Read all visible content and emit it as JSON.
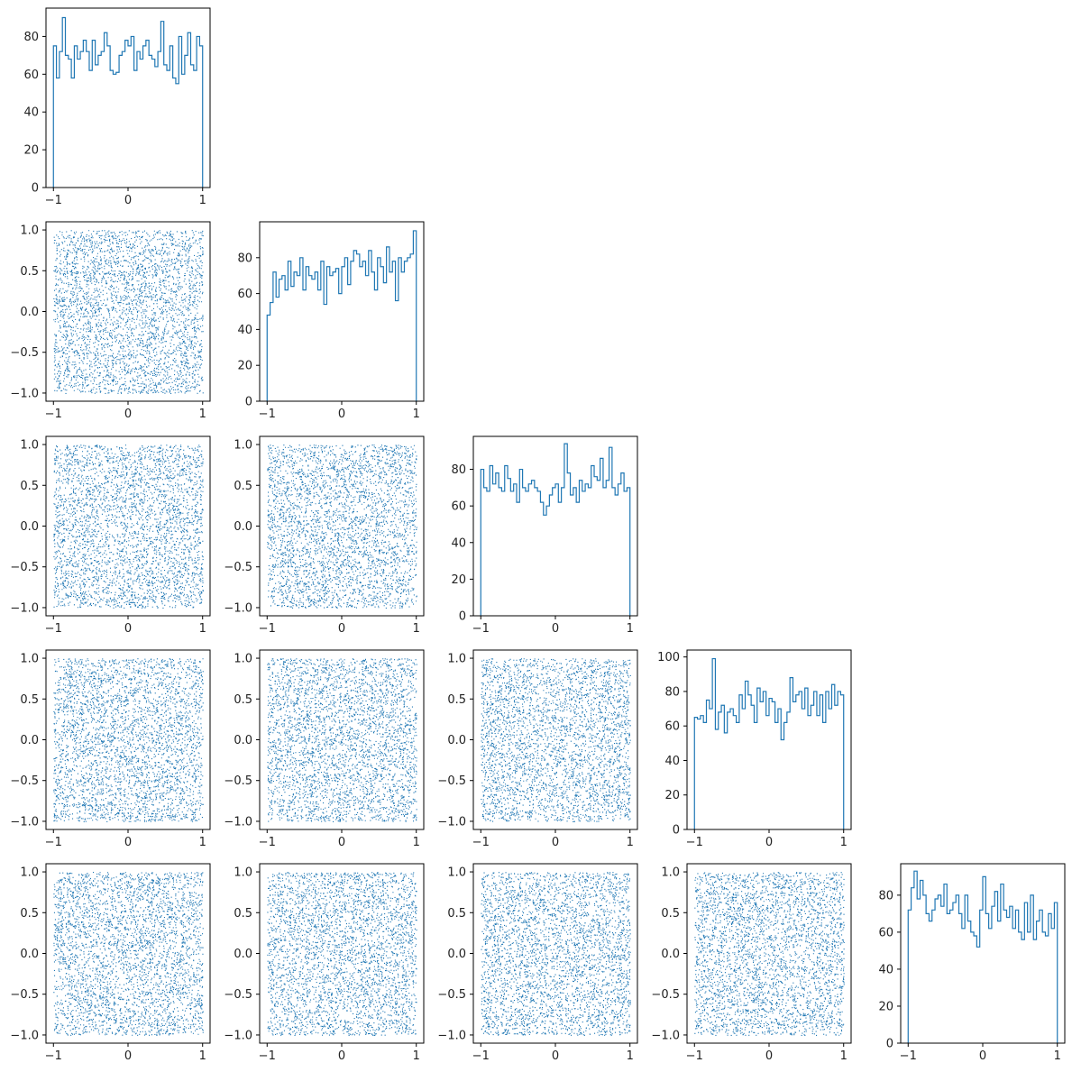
{
  "figure": {
    "type": "corner_plot",
    "n_dims": 5,
    "bins": 50,
    "n_samples": 3500,
    "range": [
      -1,
      1
    ],
    "colors": {
      "hist": "#1f77b4",
      "scatter": "#1f77b4"
    }
  },
  "chart_data": {
    "type": "corner",
    "diagonal": [
      {
        "type": "histogram",
        "dim": 0,
        "ylim": [
          0,
          95
        ],
        "yticks": [
          0,
          20,
          40,
          60,
          80
        ],
        "xticks": [
          -1,
          0,
          1
        ],
        "counts": [
          75,
          58,
          72,
          90,
          70,
          68,
          58,
          75,
          68,
          72,
          78,
          72,
          62,
          78,
          65,
          70,
          72,
          82,
          75,
          62,
          60,
          61,
          70,
          72,
          78,
          75,
          80,
          62,
          72,
          68,
          75,
          78,
          70,
          68,
          64,
          72,
          88,
          65,
          62,
          75,
          58,
          55,
          80,
          60,
          70,
          82,
          65,
          62,
          80,
          75
        ]
      },
      {
        "type": "histogram",
        "dim": 1,
        "ylim": [
          0,
          100
        ],
        "yticks": [
          0,
          20,
          40,
          60,
          80
        ],
        "xticks": [
          -1,
          0,
          1
        ],
        "counts": [
          48,
          55,
          72,
          58,
          68,
          70,
          62,
          78,
          64,
          72,
          70,
          80,
          62,
          75,
          70,
          68,
          72,
          62,
          78,
          54,
          75,
          70,
          72,
          74,
          60,
          75,
          80,
          65,
          78,
          84,
          82,
          75,
          78,
          70,
          84,
          72,
          62,
          80,
          75,
          66,
          86,
          72,
          78,
          56,
          80,
          72,
          78,
          80,
          82,
          95
        ]
      },
      {
        "type": "histogram",
        "dim": 2,
        "ylim": [
          0,
          98
        ],
        "yticks": [
          0,
          20,
          40,
          60,
          80
        ],
        "xticks": [
          -1,
          0,
          1
        ],
        "counts": [
          80,
          70,
          68,
          82,
          72,
          78,
          70,
          68,
          82,
          75,
          68,
          72,
          62,
          80,
          70,
          68,
          72,
          74,
          70,
          68,
          62,
          55,
          60,
          66,
          70,
          72,
          62,
          70,
          94,
          78,
          66,
          70,
          62,
          74,
          68,
          72,
          70,
          82,
          76,
          74,
          86,
          70,
          74,
          92,
          70,
          66,
          72,
          78,
          68,
          70
        ]
      },
      {
        "type": "histogram",
        "dim": 3,
        "ylim": [
          0,
          104
        ],
        "yticks": [
          0,
          20,
          40,
          60,
          80,
          100
        ],
        "xticks": [
          -1,
          0,
          1
        ],
        "counts": [
          65,
          64,
          66,
          62,
          75,
          70,
          99,
          58,
          68,
          72,
          56,
          68,
          70,
          66,
          62,
          78,
          70,
          86,
          78,
          72,
          62,
          82,
          74,
          80,
          66,
          76,
          74,
          62,
          70,
          52,
          62,
          68,
          88,
          74,
          78,
          80,
          70,
          82,
          66,
          72,
          80,
          66,
          78,
          62,
          80,
          70,
          84,
          72,
          80,
          78
        ]
      },
      {
        "type": "histogram",
        "dim": 4,
        "ylim": [
          0,
          97
        ],
        "yticks": [
          0,
          20,
          40,
          60,
          80
        ],
        "xticks": [
          -1,
          0,
          1
        ],
        "counts": [
          72,
          84,
          93,
          78,
          88,
          80,
          70,
          66,
          72,
          78,
          80,
          74,
          86,
          70,
          72,
          76,
          80,
          70,
          62,
          80,
          66,
          60,
          58,
          52,
          72,
          90,
          70,
          62,
          74,
          82,
          66,
          86,
          72,
          68,
          74,
          62,
          72,
          60,
          56,
          76,
          60,
          80,
          56,
          66,
          72,
          60,
          58,
          70,
          62,
          76
        ]
      }
    ],
    "off_diagonal": {
      "type": "scatter",
      "pairs": [
        [
          1,
          0
        ],
        [
          2,
          0
        ],
        [
          2,
          1
        ],
        [
          3,
          0
        ],
        [
          3,
          1
        ],
        [
          3,
          2
        ],
        [
          4,
          0
        ],
        [
          4,
          1
        ],
        [
          4,
          2
        ],
        [
          4,
          3
        ]
      ],
      "xlim": [
        -1.1,
        1.1
      ],
      "ylim": [
        -1.1,
        1.1
      ],
      "xticks": [
        -1,
        0,
        1
      ],
      "yticks": [
        -1.0,
        -0.5,
        0.0,
        0.5,
        1.0
      ],
      "distribution": "uniform",
      "points_per_panel": 3500
    }
  }
}
